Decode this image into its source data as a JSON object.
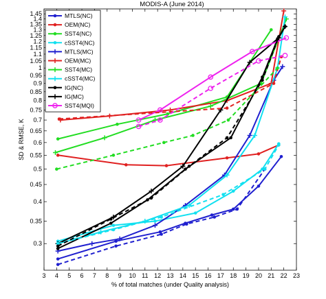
{
  "chart_data": {
    "type": "line",
    "title": "MODIS-A (June 2014)",
    "xlabel": "% of total matches (under Quality analysis)",
    "ylabel": "SD & RMSE, K",
    "xlim": [
      3,
      23
    ],
    "ylim": [
      0.25,
      1.5
    ],
    "y_scale": "log",
    "grid": false,
    "legend_position": "top-left",
    "x_ticks": [
      3,
      4,
      5,
      6,
      7,
      8,
      9,
      10,
      11,
      12,
      13,
      14,
      15,
      16,
      17,
      18,
      19,
      20,
      21,
      22,
      23
    ],
    "y_ticks": [
      0.3,
      0.35,
      0.4,
      0.45,
      0.5,
      0.55,
      0.6,
      0.65,
      0.7,
      0.75,
      0.8,
      0.85,
      0.9,
      0.95,
      1,
      1.05,
      1.1,
      1.15,
      1.2,
      1.25,
      1.3,
      1.35,
      1.4,
      1.45
    ],
    "series": [
      {
        "name": "MTLS(NC)",
        "color": "#1f1fcf",
        "dash": "solid",
        "marker": "dot",
        "x": [
          4.1,
          8.7,
          12.2,
          14.2,
          16.3,
          18,
          20,
          21.8
        ],
        "y": [
          0.27,
          0.305,
          0.325,
          0.345,
          0.365,
          0.38,
          0.445,
          0.545
        ]
      },
      {
        "name": "OEM(NC)",
        "color": "#e02020",
        "dash": "solid",
        "marker": "dot",
        "x": [
          4.1,
          9.5,
          12.7,
          17.5,
          20,
          21.6
        ],
        "y": [
          0.55,
          0.515,
          0.512,
          0.54,
          0.555,
          0.59
        ]
      },
      {
        "name": "SST4(NC)",
        "color": "#22dd22",
        "dash": "solid",
        "marker": "dot",
        "x": [
          4.1,
          8.8,
          12.8,
          17.5,
          21
        ],
        "y": [
          0.615,
          0.68,
          0.73,
          0.82,
          1.3
        ]
      },
      {
        "name": "cSST4(NC)",
        "color": "#11e0f0",
        "dash": "solid",
        "marker": "dot",
        "x": [
          4.1,
          8.5,
          11.8,
          15,
          18,
          20.3,
          21.6
        ],
        "y": [
          0.305,
          0.34,
          0.35,
          0.37,
          0.43,
          0.5,
          0.595
        ]
      },
      {
        "name": "MTLS(MC)",
        "color": "#1f1fcf",
        "dash": "solid",
        "marker": "plus",
        "x": [
          4.1,
          6.8,
          9,
          11.8,
          14.2,
          17.3,
          19.3,
          21.2,
          21.9
        ],
        "y": [
          0.285,
          0.3,
          0.31,
          0.34,
          0.39,
          0.48,
          0.63,
          0.92,
          1.01
        ]
      },
      {
        "name": "OEM(MC)",
        "color": "#e02020",
        "dash": "solid",
        "marker": "plus",
        "x": [
          4.3,
          8.2,
          13,
          17.5,
          21,
          22
        ],
        "y": [
          0.7,
          0.72,
          0.75,
          0.8,
          0.9,
          1.48
        ]
      },
      {
        "name": "SST4(MC)",
        "color": "#22dd22",
        "dash": "solid",
        "marker": "plus",
        "x": [
          3.9,
          7.8,
          11.8,
          16.2,
          20.2,
          22.2
        ],
        "y": [
          0.56,
          0.62,
          0.7,
          0.77,
          0.9,
          1.4
        ]
      },
      {
        "name": "cSST4(MC)",
        "color": "#11e0f0",
        "dash": "solid",
        "marker": "plus",
        "x": [
          4.1,
          7.5,
          11,
          14.5,
          17.5,
          19.7,
          21.5,
          22.1
        ],
        "y": [
          0.3,
          0.325,
          0.35,
          0.39,
          0.48,
          0.63,
          1.0,
          1.42
        ]
      },
      {
        "name": "IG(NC)",
        "color": "#000000",
        "dash": "solid",
        "marker": "dot",
        "x": [
          4.1,
          8.3,
          11.2,
          14.2,
          17.8,
          20.3,
          21.5,
          22.1
        ],
        "y": [
          0.29,
          0.345,
          0.405,
          0.5,
          0.62,
          0.94,
          1.22,
          1.33
        ]
      },
      {
        "name": "IG(MC)",
        "color": "#000000",
        "dash": "solid",
        "marker": "plus",
        "x": [
          4.1,
          8.5,
          11.5,
          14,
          17,
          19.3,
          21.6,
          22.1
        ],
        "y": [
          0.3,
          0.36,
          0.43,
          0.51,
          0.75,
          1.04,
          1.23,
          1.33
        ]
      },
      {
        "name": "SST4(MQI)",
        "color": "#ee22ee",
        "dash": "solid",
        "marker": "circle",
        "x": [
          10.5,
          12.2,
          16.2,
          19.5,
          22.2
        ],
        "y": [
          0.7,
          0.75,
          0.94,
          1.12,
          1.23
        ]
      },
      {
        "name": "",
        "color": "#1f1fcf",
        "dash": "dashed",
        "marker": "dot",
        "x": [
          4.1,
          8.7,
          12.3,
          14.3,
          16.5,
          18.3,
          20.5
        ],
        "y": [
          0.26,
          0.295,
          0.32,
          0.343,
          0.36,
          0.38,
          0.5
        ]
      },
      {
        "name": "",
        "color": "#e02020",
        "dash": "dashed",
        "marker": "dot",
        "x": [
          4.2,
          17.5,
          21.2,
          21.8
        ],
        "y": [
          0.705,
          0.76,
          0.9,
          1.08
        ]
      },
      {
        "name": "",
        "color": "#22dd22",
        "dash": "dashed",
        "marker": "dot",
        "x": [
          4,
          8.5,
          12.5,
          14.8,
          17.6,
          21.5
        ],
        "y": [
          0.5,
          0.55,
          0.6,
          0.63,
          0.7,
          1.0
        ]
      },
      {
        "name": "",
        "color": "#11e0f0",
        "dash": "dashed",
        "marker": "dot",
        "x": [
          4.1,
          8.5,
          12.3,
          17.2,
          20.5,
          21.6
        ],
        "y": [
          0.3,
          0.33,
          0.36,
          0.42,
          0.5,
          0.59
        ]
      },
      {
        "name": "",
        "color": "#000000",
        "dash": "dashed",
        "marker": "dot",
        "x": [
          4.1,
          8.3,
          11.5,
          14.5,
          17.5,
          20.3,
          21.6
        ],
        "y": [
          0.295,
          0.355,
          0.41,
          0.51,
          0.62,
          0.92,
          1.24
        ]
      },
      {
        "name": "",
        "color": "#ee22ee",
        "dash": "dashed",
        "marker": "circle",
        "x": [
          10.5,
          12.2,
          16.2,
          20,
          22.1
        ],
        "y": [
          0.67,
          0.7,
          0.87,
          1.05,
          1.09
        ]
      }
    ]
  }
}
